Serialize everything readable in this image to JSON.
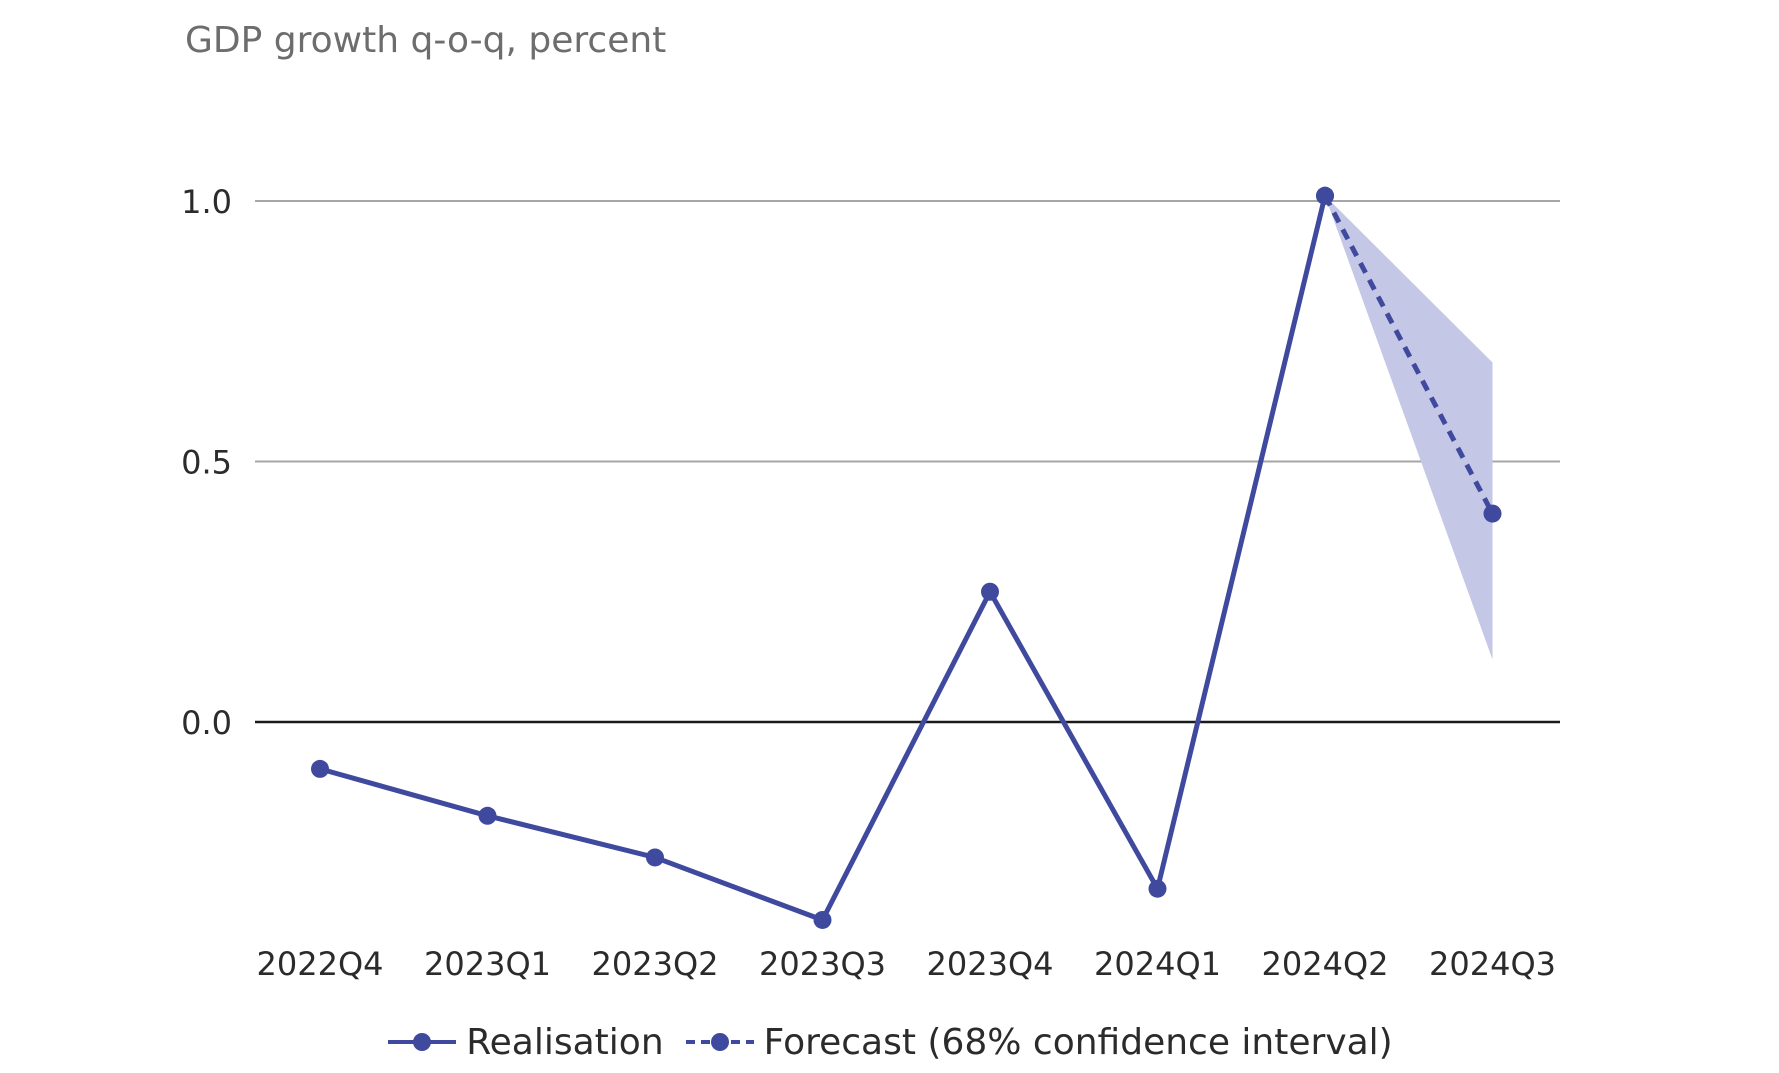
{
  "chart_data": {
    "type": "line",
    "ylabel": "GDP growth q-o-q, percent",
    "categories": [
      "2022Q4",
      "2023Q1",
      "2023Q2",
      "2023Q3",
      "2023Q4",
      "2024Q1",
      "2024Q2",
      "2024Q3"
    ],
    "ylim": [
      -0.4,
      1.0
    ],
    "yticks": [
      1.0,
      0.5,
      0.0
    ],
    "ytick_labels": [
      "1.0",
      "0.5",
      "0.0"
    ],
    "grid": true,
    "legend_position": "bottom",
    "series": [
      {
        "name": "Realisation",
        "style": "solid",
        "color": "#3f4a9e",
        "values": [
          -0.09,
          -0.18,
          -0.26,
          -0.38,
          0.25,
          -0.32,
          1.01,
          null
        ]
      },
      {
        "name": "Forecast (68% confidence interval)",
        "style": "dashed",
        "color": "#3f4a9e",
        "values": [
          null,
          null,
          null,
          null,
          null,
          null,
          1.01,
          0.4
        ],
        "band_lower": [
          null,
          null,
          null,
          null,
          null,
          null,
          1.01,
          0.12
        ],
        "band_upper": [
          null,
          null,
          null,
          null,
          null,
          null,
          1.01,
          0.69
        ],
        "band_color": "#c5c7e6"
      }
    ]
  }
}
